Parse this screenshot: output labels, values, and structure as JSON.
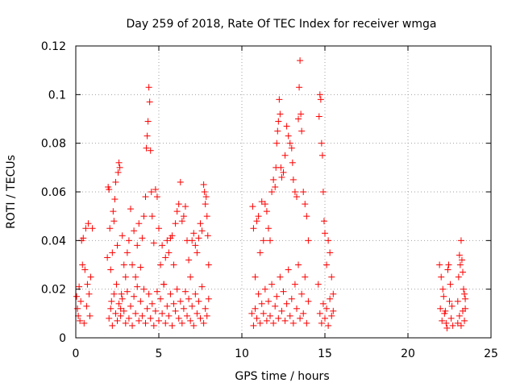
{
  "chart_data": {
    "type": "scatter",
    "title": "Day 259 of 2018, Rate Of TEC Index for receiver wmga",
    "xlabel": "GPS time / hours",
    "ylabel": "ROTI / TECUs",
    "xlim": [
      0,
      25
    ],
    "ylim": [
      0,
      0.12
    ],
    "x_ticks": [
      0,
      5,
      10,
      15,
      20,
      25
    ],
    "x_tick_labels": [
      "0",
      "5",
      "10",
      "15",
      "20",
      "25"
    ],
    "y_ticks": [
      0,
      0.02,
      0.04,
      0.06,
      0.08,
      0.1,
      0.12
    ],
    "y_tick_labels": [
      "0",
      "0.02",
      "0.04",
      "0.06",
      "0.08",
      "0.1",
      "0.12"
    ],
    "grid": true,
    "legend": "none",
    "marker": "plus",
    "color": "#ff0000",
    "series": [
      {
        "points": [
          [
            0.05,
            0.017
          ],
          [
            0.1,
            0.012
          ],
          [
            0.15,
            0.009
          ],
          [
            0.2,
            0.021
          ],
          [
            0.25,
            0.007
          ],
          [
            0.3,
            0.015
          ],
          [
            0.35,
            0.04
          ],
          [
            0.4,
            0.03
          ],
          [
            0.45,
            0.041
          ],
          [
            0.5,
            0.006
          ],
          [
            0.55,
            0.028
          ],
          [
            0.6,
            0.045
          ],
          [
            0.65,
            0.013
          ],
          [
            0.7,
            0.022
          ],
          [
            0.75,
            0.047
          ],
          [
            0.8,
            0.018
          ],
          [
            0.85,
            0.009
          ],
          [
            0.9,
            0.025
          ],
          [
            1.0,
            0.045
          ],
          [
            1.9,
            0.033
          ],
          [
            1.95,
            0.062
          ],
          [
            2.0,
            0.061
          ],
          [
            2.05,
            0.045
          ],
          [
            2.1,
            0.028
          ],
          [
            2.15,
            0.015
          ],
          [
            2.2,
            0.035
          ],
          [
            2.25,
            0.052
          ],
          [
            2.3,
            0.048
          ],
          [
            2.35,
            0.057
          ],
          [
            2.4,
            0.064
          ],
          [
            2.45,
            0.022
          ],
          [
            2.5,
            0.038
          ],
          [
            2.55,
            0.068
          ],
          [
            2.6,
            0.072
          ],
          [
            2.65,
            0.07
          ],
          [
            2.7,
            0.012
          ],
          [
            2.75,
            0.018
          ],
          [
            2.8,
            0.042
          ],
          [
            2.9,
            0.03
          ],
          [
            3.0,
            0.025
          ],
          [
            3.1,
            0.035
          ],
          [
            3.2,
            0.04
          ],
          [
            3.3,
            0.053
          ],
          [
            3.4,
            0.03
          ],
          [
            3.5,
            0.044
          ],
          [
            3.6,
            0.025
          ],
          [
            3.7,
            0.038
          ],
          [
            3.8,
            0.047
          ],
          [
            3.9,
            0.029
          ],
          [
            4.0,
            0.041
          ],
          [
            4.1,
            0.05
          ],
          [
            4.2,
            0.058
          ],
          [
            4.25,
            0.078
          ],
          [
            4.3,
            0.083
          ],
          [
            4.35,
            0.089
          ],
          [
            4.4,
            0.103
          ],
          [
            4.45,
            0.097
          ],
          [
            4.5,
            0.077
          ],
          [
            4.55,
            0.06
          ],
          [
            4.6,
            0.05
          ],
          [
            4.7,
            0.039
          ],
          [
            4.8,
            0.061
          ],
          [
            4.9,
            0.058
          ],
          [
            5.0,
            0.045
          ],
          [
            5.1,
            0.03
          ],
          [
            5.2,
            0.038
          ],
          [
            5.3,
            0.022
          ],
          [
            5.4,
            0.033
          ],
          [
            5.5,
            0.04
          ],
          [
            5.6,
            0.035
          ],
          [
            5.7,
            0.041
          ],
          [
            5.8,
            0.042
          ],
          [
            5.9,
            0.03
          ],
          [
            6.0,
            0.047
          ],
          [
            6.1,
            0.052
          ],
          [
            6.2,
            0.055
          ],
          [
            6.3,
            0.064
          ],
          [
            6.4,
            0.048
          ],
          [
            6.5,
            0.05
          ],
          [
            6.6,
            0.054
          ],
          [
            6.7,
            0.04
          ],
          [
            6.8,
            0.032
          ],
          [
            6.9,
            0.025
          ],
          [
            7.0,
            0.04
          ],
          [
            7.1,
            0.043
          ],
          [
            7.2,
            0.038
          ],
          [
            7.3,
            0.035
          ],
          [
            7.4,
            0.041
          ],
          [
            7.5,
            0.047
          ],
          [
            7.6,
            0.044
          ],
          [
            7.7,
            0.063
          ],
          [
            7.75,
            0.06
          ],
          [
            7.8,
            0.055
          ],
          [
            7.85,
            0.058
          ],
          [
            7.9,
            0.05
          ],
          [
            7.95,
            0.042
          ],
          [
            8.0,
            0.03
          ],
          [
            2.0,
            0.008
          ],
          [
            2.1,
            0.012
          ],
          [
            2.2,
            0.005
          ],
          [
            2.3,
            0.018
          ],
          [
            2.4,
            0.01
          ],
          [
            2.5,
            0.007
          ],
          [
            2.6,
            0.014
          ],
          [
            2.7,
            0.009
          ],
          [
            2.8,
            0.016
          ],
          [
            2.9,
            0.011
          ],
          [
            3.0,
            0.006
          ],
          [
            3.1,
            0.019
          ],
          [
            3.2,
            0.008
          ],
          [
            3.3,
            0.013
          ],
          [
            3.4,
            0.005
          ],
          [
            3.5,
            0.017
          ],
          [
            3.6,
            0.01
          ],
          [
            3.7,
            0.021
          ],
          [
            3.8,
            0.007
          ],
          [
            3.9,
            0.015
          ],
          [
            4.0,
            0.009
          ],
          [
            4.1,
            0.02
          ],
          [
            4.2,
            0.006
          ],
          [
            4.3,
            0.012
          ],
          [
            4.4,
            0.018
          ],
          [
            4.5,
            0.008
          ],
          [
            4.6,
            0.014
          ],
          [
            4.7,
            0.005
          ],
          [
            4.8,
            0.011
          ],
          [
            4.9,
            0.019
          ],
          [
            5.0,
            0.007
          ],
          [
            5.1,
            0.016
          ],
          [
            5.2,
            0.01
          ],
          [
            5.3,
            0.022
          ],
          [
            5.4,
            0.006
          ],
          [
            5.5,
            0.013
          ],
          [
            5.6,
            0.009
          ],
          [
            5.7,
            0.018
          ],
          [
            5.8,
            0.005
          ],
          [
            5.9,
            0.014
          ],
          [
            6.0,
            0.011
          ],
          [
            6.1,
            0.02
          ],
          [
            6.2,
            0.008
          ],
          [
            6.3,
            0.015
          ],
          [
            6.4,
            0.006
          ],
          [
            6.5,
            0.012
          ],
          [
            6.6,
            0.019
          ],
          [
            6.7,
            0.009
          ],
          [
            6.8,
            0.016
          ],
          [
            6.9,
            0.007
          ],
          [
            7.0,
            0.013
          ],
          [
            7.1,
            0.005
          ],
          [
            7.2,
            0.018
          ],
          [
            7.3,
            0.01
          ],
          [
            7.4,
            0.015
          ],
          [
            7.5,
            0.008
          ],
          [
            7.6,
            0.021
          ],
          [
            7.7,
            0.006
          ],
          [
            7.8,
            0.012
          ],
          [
            7.9,
            0.009
          ],
          [
            8.0,
            0.016
          ],
          [
            10.6,
            0.01
          ],
          [
            10.65,
            0.054
          ],
          [
            10.7,
            0.045
          ],
          [
            10.8,
            0.025
          ],
          [
            10.9,
            0.048
          ],
          [
            11.0,
            0.05
          ],
          [
            11.1,
            0.035
          ],
          [
            11.2,
            0.056
          ],
          [
            11.3,
            0.04
          ],
          [
            11.4,
            0.055
          ],
          [
            11.5,
            0.052
          ],
          [
            11.6,
            0.045
          ],
          [
            11.7,
            0.04
          ],
          [
            11.8,
            0.06
          ],
          [
            11.9,
            0.065
          ],
          [
            12.0,
            0.062
          ],
          [
            12.05,
            0.07
          ],
          [
            12.1,
            0.08
          ],
          [
            12.15,
            0.085
          ],
          [
            12.2,
            0.089
          ],
          [
            12.25,
            0.098
          ],
          [
            12.3,
            0.092
          ],
          [
            12.35,
            0.07
          ],
          [
            12.4,
            0.066
          ],
          [
            12.5,
            0.068
          ],
          [
            12.6,
            0.075
          ],
          [
            12.7,
            0.087
          ],
          [
            12.8,
            0.083
          ],
          [
            12.9,
            0.08
          ],
          [
            13.0,
            0.078
          ],
          [
            13.05,
            0.072
          ],
          [
            13.1,
            0.065
          ],
          [
            13.2,
            0.06
          ],
          [
            13.3,
            0.058
          ],
          [
            13.4,
            0.09
          ],
          [
            13.45,
            0.103
          ],
          [
            13.5,
            0.114
          ],
          [
            13.55,
            0.092
          ],
          [
            13.6,
            0.085
          ],
          [
            13.7,
            0.06
          ],
          [
            13.8,
            0.055
          ],
          [
            13.9,
            0.05
          ],
          [
            14.0,
            0.04
          ],
          [
            10.7,
            0.005
          ],
          [
            10.8,
            0.012
          ],
          [
            10.9,
            0.008
          ],
          [
            11.0,
            0.018
          ],
          [
            11.1,
            0.006
          ],
          [
            11.2,
            0.014
          ],
          [
            11.3,
            0.01
          ],
          [
            11.4,
            0.02
          ],
          [
            11.5,
            0.007
          ],
          [
            11.6,
            0.015
          ],
          [
            11.7,
            0.009
          ],
          [
            11.8,
            0.022
          ],
          [
            11.9,
            0.006
          ],
          [
            12.0,
            0.013
          ],
          [
            12.1,
            0.017
          ],
          [
            12.2,
            0.008
          ],
          [
            12.3,
            0.025
          ],
          [
            12.4,
            0.011
          ],
          [
            12.5,
            0.019
          ],
          [
            12.6,
            0.007
          ],
          [
            12.7,
            0.014
          ],
          [
            12.8,
            0.028
          ],
          [
            12.9,
            0.009
          ],
          [
            13.0,
            0.016
          ],
          [
            13.1,
            0.006
          ],
          [
            13.2,
            0.022
          ],
          [
            13.3,
            0.012
          ],
          [
            13.4,
            0.03
          ],
          [
            13.5,
            0.008
          ],
          [
            13.6,
            0.018
          ],
          [
            13.7,
            0.01
          ],
          [
            13.8,
            0.025
          ],
          [
            13.9,
            0.006
          ],
          [
            14.0,
            0.015
          ],
          [
            14.6,
            0.022
          ],
          [
            14.65,
            0.091
          ],
          [
            14.7,
            0.1
          ],
          [
            14.75,
            0.098
          ],
          [
            14.8,
            0.08
          ],
          [
            14.85,
            0.075
          ],
          [
            14.9,
            0.06
          ],
          [
            14.95,
            0.048
          ],
          [
            15.0,
            0.043
          ],
          [
            15.1,
            0.03
          ],
          [
            15.2,
            0.04
          ],
          [
            15.3,
            0.035
          ],
          [
            15.4,
            0.025
          ],
          [
            15.5,
            0.018
          ],
          [
            14.7,
            0.01
          ],
          [
            14.8,
            0.006
          ],
          [
            14.9,
            0.014
          ],
          [
            15.0,
            0.008
          ],
          [
            15.1,
            0.012
          ],
          [
            15.2,
            0.005
          ],
          [
            15.3,
            0.016
          ],
          [
            15.4,
            0.009
          ],
          [
            15.5,
            0.011
          ],
          [
            21.9,
            0.03
          ],
          [
            22.0,
            0.025
          ],
          [
            22.1,
            0.02
          ],
          [
            22.2,
            0.01
          ],
          [
            22.3,
            0.006
          ],
          [
            22.4,
            0.028
          ],
          [
            22.45,
            0.03
          ],
          [
            22.5,
            0.015
          ],
          [
            22.6,
            0.008
          ],
          [
            22.7,
            0.005
          ],
          [
            21.95,
            0.012
          ],
          [
            22.05,
            0.007
          ],
          [
            22.15,
            0.017
          ],
          [
            22.25,
            0.011
          ],
          [
            22.35,
            0.004
          ],
          [
            22.55,
            0.022
          ],
          [
            22.65,
            0.013
          ],
          [
            23.0,
            0.015
          ],
          [
            23.05,
            0.025
          ],
          [
            23.1,
            0.034
          ],
          [
            23.15,
            0.03
          ],
          [
            23.2,
            0.04
          ],
          [
            23.25,
            0.032
          ],
          [
            23.3,
            0.027
          ],
          [
            23.35,
            0.02
          ],
          [
            23.4,
            0.018
          ],
          [
            23.45,
            0.012
          ],
          [
            23.0,
            0.006
          ],
          [
            23.1,
            0.009
          ],
          [
            23.2,
            0.005
          ],
          [
            23.3,
            0.011
          ],
          [
            23.4,
            0.007
          ],
          [
            23.45,
            0.016
          ]
        ]
      }
    ]
  }
}
